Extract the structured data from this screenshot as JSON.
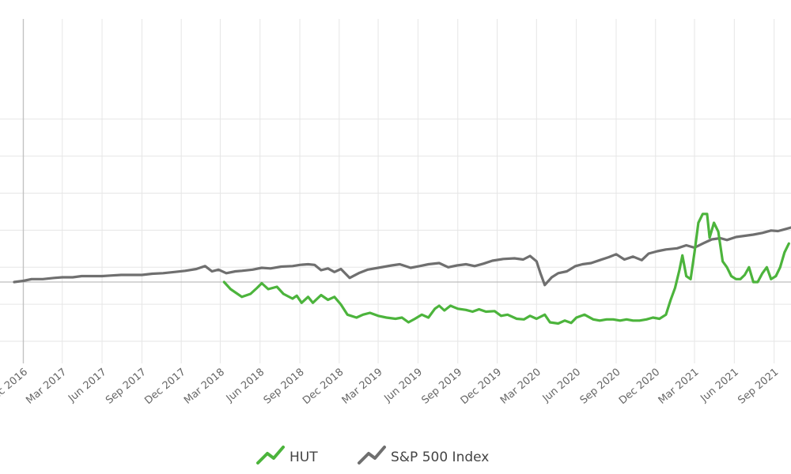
{
  "chart_data": {
    "type": "line",
    "x_axis_ticks": [
      "Dec 2016",
      "Mar 2017",
      "Jun 2017",
      "Sep 2017",
      "Dec 2017",
      "Mar 2018",
      "Jun 2018",
      "Sep 2018",
      "Dec 2018",
      "Mar 2019",
      "Jun 2019",
      "Sep 2019",
      "Dec 2019",
      "Mar 2020",
      "Jun 2020",
      "Sep 2020",
      "Dec 2020",
      "Mar 2021",
      "Jun 2021",
      "Sep 2021"
    ],
    "x_range": [
      "2016-11-10",
      "2021-10-10"
    ],
    "y_range": [
      -100,
      300
    ],
    "baseline": 0,
    "grid": true,
    "legend_position": "bottom-center",
    "colors": {
      "HUT": "#4cb43c",
      "SP500": "#6f6f6f",
      "grid": "#e6e6e6",
      "baseline": "#bdbdbd"
    },
    "series": [
      {
        "name": "HUT",
        "color": "#4cb43c",
        "points": [
          [
            "2018-03-10",
            0
          ],
          [
            "2018-03-25",
            -12
          ],
          [
            "2018-04-20",
            -25
          ],
          [
            "2018-05-10",
            -20
          ],
          [
            "2018-05-25",
            -10
          ],
          [
            "2018-06-05",
            -2
          ],
          [
            "2018-06-20",
            -12
          ],
          [
            "2018-07-10",
            -8
          ],
          [
            "2018-07-25",
            -20
          ],
          [
            "2018-08-15",
            -28
          ],
          [
            "2018-08-25",
            -23
          ],
          [
            "2018-09-05",
            -35
          ],
          [
            "2018-09-20",
            -25
          ],
          [
            "2018-10-01",
            -35
          ],
          [
            "2018-10-20",
            -22
          ],
          [
            "2018-11-05",
            -30
          ],
          [
            "2018-11-20",
            -25
          ],
          [
            "2018-12-05",
            -38
          ],
          [
            "2018-12-20",
            -55
          ],
          [
            "2019-01-10",
            -60
          ],
          [
            "2019-01-25",
            -55
          ],
          [
            "2019-02-10",
            -52
          ],
          [
            "2019-03-01",
            -57
          ],
          [
            "2019-03-20",
            -60
          ],
          [
            "2019-04-10",
            -62
          ],
          [
            "2019-04-25",
            -60
          ],
          [
            "2019-05-10",
            -68
          ],
          [
            "2019-05-25",
            -62
          ],
          [
            "2019-06-10",
            -55
          ],
          [
            "2019-06-25",
            -60
          ],
          [
            "2019-07-10",
            -45
          ],
          [
            "2019-07-20",
            -40
          ],
          [
            "2019-08-01",
            -48
          ],
          [
            "2019-08-15",
            -40
          ],
          [
            "2019-09-01",
            -45
          ],
          [
            "2019-09-20",
            -47
          ],
          [
            "2019-10-05",
            -50
          ],
          [
            "2019-10-20",
            -46
          ],
          [
            "2019-11-05",
            -50
          ],
          [
            "2019-11-25",
            -49
          ],
          [
            "2019-12-10",
            -57
          ],
          [
            "2019-12-25",
            -55
          ],
          [
            "2020-01-15",
            -62
          ],
          [
            "2020-02-01",
            -63
          ],
          [
            "2020-02-15",
            -57
          ],
          [
            "2020-03-01",
            -62
          ],
          [
            "2020-03-20",
            -55
          ],
          [
            "2020-04-01",
            -68
          ],
          [
            "2020-04-20",
            -70
          ],
          [
            "2020-05-05",
            -65
          ],
          [
            "2020-05-20",
            -69
          ],
          [
            "2020-06-01",
            -60
          ],
          [
            "2020-06-20",
            -55
          ],
          [
            "2020-07-10",
            -63
          ],
          [
            "2020-07-25",
            -65
          ],
          [
            "2020-08-10",
            -63
          ],
          [
            "2020-08-25",
            -63
          ],
          [
            "2020-09-10",
            -65
          ],
          [
            "2020-09-25",
            -63
          ],
          [
            "2020-10-10",
            -65
          ],
          [
            "2020-10-25",
            -65
          ],
          [
            "2020-11-10",
            -63
          ],
          [
            "2020-11-25",
            -60
          ],
          [
            "2020-12-10",
            -62
          ],
          [
            "2020-12-25",
            -55
          ],
          [
            "2021-01-05",
            -30
          ],
          [
            "2021-01-15",
            -10
          ],
          [
            "2021-01-25",
            20
          ],
          [
            "2021-02-01",
            45
          ],
          [
            "2021-02-10",
            10
          ],
          [
            "2021-02-20",
            5
          ],
          [
            "2021-03-01",
            50
          ],
          [
            "2021-03-10",
            100
          ],
          [
            "2021-03-20",
            115
          ],
          [
            "2021-03-30",
            115
          ],
          [
            "2021-04-05",
            75
          ],
          [
            "2021-04-15",
            100
          ],
          [
            "2021-04-25",
            85
          ],
          [
            "2021-05-05",
            35
          ],
          [
            "2021-05-15",
            25
          ],
          [
            "2021-05-25",
            10
          ],
          [
            "2021-06-05",
            5
          ],
          [
            "2021-06-15",
            5
          ],
          [
            "2021-06-25",
            12
          ],
          [
            "2021-07-05",
            25
          ],
          [
            "2021-07-15",
            0
          ],
          [
            "2021-07-25",
            0
          ],
          [
            "2021-08-05",
            15
          ],
          [
            "2021-08-15",
            25
          ],
          [
            "2021-08-25",
            5
          ],
          [
            "2021-09-05",
            10
          ],
          [
            "2021-09-15",
            25
          ],
          [
            "2021-09-25",
            50
          ],
          [
            "2021-10-05",
            65
          ]
        ]
      },
      {
        "name": "S&P 500 Index",
        "color": "#6f6f6f",
        "points": [
          [
            "2016-11-10",
            0
          ],
          [
            "2016-12-01",
            2
          ],
          [
            "2016-12-20",
            5
          ],
          [
            "2017-01-15",
            5
          ],
          [
            "2017-02-10",
            7
          ],
          [
            "2017-03-01",
            8
          ],
          [
            "2017-03-25",
            8
          ],
          [
            "2017-04-15",
            10
          ],
          [
            "2017-05-10",
            10
          ],
          [
            "2017-06-01",
            10
          ],
          [
            "2017-06-20",
            11
          ],
          [
            "2017-07-15",
            12
          ],
          [
            "2017-08-10",
            12
          ],
          [
            "2017-09-01",
            12
          ],
          [
            "2017-09-25",
            14
          ],
          [
            "2017-10-20",
            15
          ],
          [
            "2017-11-15",
            17
          ],
          [
            "2017-12-10",
            19
          ],
          [
            "2018-01-05",
            22
          ],
          [
            "2018-01-25",
            27
          ],
          [
            "2018-02-10",
            18
          ],
          [
            "2018-02-25",
            21
          ],
          [
            "2018-03-15",
            15
          ],
          [
            "2018-04-05",
            18
          ],
          [
            "2018-04-20",
            19
          ],
          [
            "2018-05-15",
            21
          ],
          [
            "2018-06-05",
            24
          ],
          [
            "2018-06-25",
            23
          ],
          [
            "2018-07-20",
            26
          ],
          [
            "2018-08-15",
            27
          ],
          [
            "2018-09-01",
            29
          ],
          [
            "2018-09-20",
            30
          ],
          [
            "2018-10-05",
            29
          ],
          [
            "2018-10-20",
            20
          ],
          [
            "2018-11-05",
            23
          ],
          [
            "2018-11-20",
            17
          ],
          [
            "2018-12-05",
            22
          ],
          [
            "2018-12-25",
            7
          ],
          [
            "2019-01-15",
            15
          ],
          [
            "2019-02-05",
            21
          ],
          [
            "2019-03-01",
            24
          ],
          [
            "2019-04-01",
            28
          ],
          [
            "2019-04-20",
            30
          ],
          [
            "2019-05-15",
            24
          ],
          [
            "2019-06-05",
            27
          ],
          [
            "2019-06-25",
            30
          ],
          [
            "2019-07-20",
            32
          ],
          [
            "2019-08-10",
            25
          ],
          [
            "2019-08-30",
            28
          ],
          [
            "2019-09-20",
            30
          ],
          [
            "2019-10-10",
            27
          ],
          [
            "2019-10-30",
            31
          ],
          [
            "2019-11-20",
            36
          ],
          [
            "2019-12-15",
            39
          ],
          [
            "2020-01-10",
            40
          ],
          [
            "2020-01-30",
            38
          ],
          [
            "2020-02-15",
            44
          ],
          [
            "2020-03-01",
            35
          ],
          [
            "2020-03-10",
            15
          ],
          [
            "2020-03-20",
            -5
          ],
          [
            "2020-04-05",
            8
          ],
          [
            "2020-04-20",
            15
          ],
          [
            "2020-05-10",
            18
          ],
          [
            "2020-05-30",
            27
          ],
          [
            "2020-06-15",
            30
          ],
          [
            "2020-07-05",
            32
          ],
          [
            "2020-07-25",
            37
          ],
          [
            "2020-08-15",
            42
          ],
          [
            "2020-09-01",
            47
          ],
          [
            "2020-09-20",
            38
          ],
          [
            "2020-10-10",
            43
          ],
          [
            "2020-10-30",
            37
          ],
          [
            "2020-11-15",
            48
          ],
          [
            "2020-12-05",
            52
          ],
          [
            "2020-12-25",
            55
          ],
          [
            "2021-01-20",
            57
          ],
          [
            "2021-02-10",
            62
          ],
          [
            "2021-03-01",
            58
          ],
          [
            "2021-03-20",
            65
          ],
          [
            "2021-04-10",
            72
          ],
          [
            "2021-04-30",
            74
          ],
          [
            "2021-05-15",
            71
          ],
          [
            "2021-06-05",
            76
          ],
          [
            "2021-06-25",
            78
          ],
          [
            "2021-07-15",
            80
          ],
          [
            "2021-08-05",
            83
          ],
          [
            "2021-08-25",
            87
          ],
          [
            "2021-09-10",
            86
          ],
          [
            "2021-09-25",
            89
          ],
          [
            "2021-10-10",
            92
          ]
        ]
      }
    ],
    "legend": [
      {
        "label": "HUT",
        "color": "#4cb43c"
      },
      {
        "label": "S&P 500 Index",
        "color": "#6f6f6f"
      }
    ]
  }
}
